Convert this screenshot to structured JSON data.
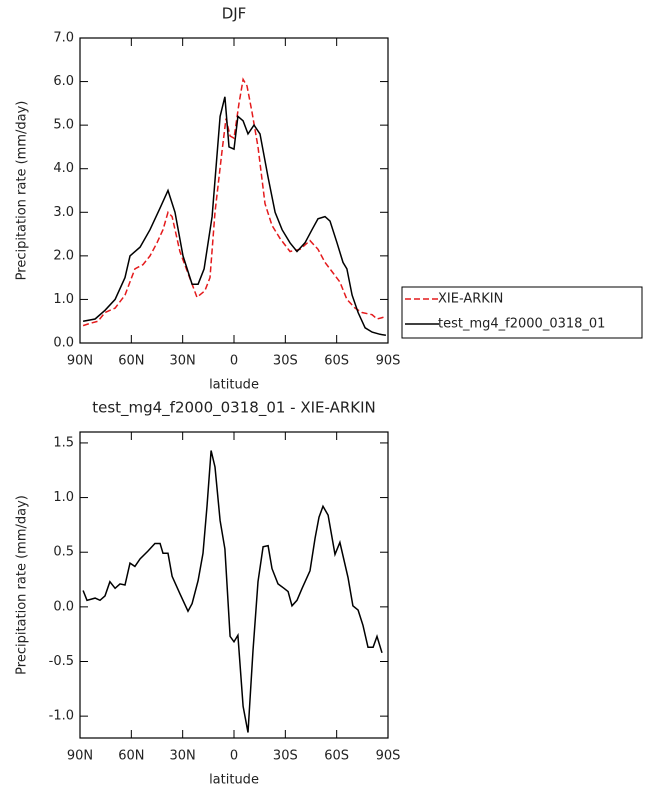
{
  "chart_data": [
    {
      "type": "line",
      "title": "DJF",
      "xlabel": "latitude",
      "ylabel": "Precipitation rate (mm/day)",
      "xlim": [
        90,
        -90
      ],
      "xticks": [
        {
          "value": 90,
          "label": "90N"
        },
        {
          "value": 60,
          "label": "60N"
        },
        {
          "value": 30,
          "label": "30N"
        },
        0,
        {
          "value": -30,
          "label": "30S"
        },
        {
          "value": -60,
          "label": "60S"
        },
        {
          "value": -90,
          "label": "90S"
        }
      ],
      "ylim": [
        0,
        7
      ],
      "yticks": [
        {
          "value": 0,
          "label": "0.0"
        },
        {
          "value": 1,
          "label": "1.0"
        },
        {
          "value": 2,
          "label": "2.0"
        },
        {
          "value": 3,
          "label": "3.0"
        },
        {
          "value": 4,
          "label": "4.0"
        },
        {
          "value": 5,
          "label": "5.0"
        },
        {
          "value": 6,
          "label": "6.0"
        },
        {
          "value": 7,
          "label": "7.0"
        }
      ],
      "legend": "right",
      "series": [
        {
          "name": "XIE-ARKIN",
          "color": "#e41a1c",
          "dash": true,
          "x": [
            88.2,
            84.2,
            79.5,
            75.4,
            69.5,
            63.7,
            57.9,
            53.2,
            49.1,
            45.0,
            41.5,
            38.6,
            36.2,
            31.6,
            26.9,
            21.6,
            17.0,
            14.0,
            11.1,
            7.0,
            4.7,
            2.3,
            0.0,
            -2.9,
            -5.3,
            -7.6,
            -10.5,
            -14.0,
            -18.1,
            -22.2,
            -26.9,
            -32.7,
            -38.6,
            -44.4,
            -49.1,
            -53.2,
            -59.0,
            -61.9,
            -66.0,
            -70.7,
            -74.8,
            -80.7,
            -83.6,
            -88.2
          ],
          "values": [
            0.4,
            0.45,
            0.5,
            0.7,
            0.8,
            1.1,
            1.7,
            1.8,
            2.0,
            2.3,
            2.6,
            3.0,
            2.9,
            2.1,
            1.6,
            1.05,
            1.2,
            1.5,
            3.0,
            4.4,
            5.15,
            4.75,
            4.7,
            5.5,
            6.05,
            5.9,
            5.3,
            4.5,
            3.2,
            2.7,
            2.4,
            2.1,
            2.15,
            2.35,
            2.15,
            1.85,
            1.55,
            1.4,
            1.0,
            0.8,
            0.7,
            0.65,
            0.55,
            0.6
          ]
        },
        {
          "name": "test_mg4_f2000_0318_01",
          "color": "#000000",
          "dash": false,
          "x": [
            88.2,
            81.2,
            75.4,
            69.5,
            63.7,
            60.8,
            54.9,
            49.1,
            43.2,
            38.6,
            34.5,
            29.8,
            24.5,
            21.0,
            17.5,
            12.8,
            8.1,
            5.3,
            2.9,
            0.0,
            -2.3,
            -5.3,
            -8.2,
            -11.7,
            -15.2,
            -19.9,
            -24.0,
            -28.1,
            -32.7,
            -36.8,
            -41.5,
            -45.6,
            -49.1,
            -53.2,
            -56.1,
            -60.2,
            -63.7,
            -66.0,
            -69.0,
            -72.5,
            -76.6,
            -80.7,
            -85.3,
            -88.8
          ],
          "values": [
            0.5,
            0.55,
            0.75,
            1.0,
            1.5,
            2.0,
            2.2,
            2.6,
            3.1,
            3.5,
            3.0,
            2.0,
            1.35,
            1.35,
            1.7,
            2.9,
            5.2,
            5.65,
            4.5,
            4.45,
            5.2,
            5.1,
            4.8,
            5.0,
            4.8,
            3.8,
            3.0,
            2.6,
            2.3,
            2.1,
            2.3,
            2.6,
            2.85,
            2.9,
            2.8,
            2.3,
            1.85,
            1.7,
            1.1,
            0.7,
            0.35,
            0.25,
            0.2,
            0.18
          ]
        }
      ]
    },
    {
      "type": "line",
      "title": "test_mg4_f2000_0318_01 - XIE-ARKIN",
      "xlabel": "latitude",
      "ylabel": "Precipitation rate (mm/day)",
      "xlim": [
        90,
        -90
      ],
      "xticks": [
        {
          "value": 90,
          "label": "90N"
        },
        {
          "value": 60,
          "label": "60N"
        },
        {
          "value": 30,
          "label": "30N"
        },
        0,
        {
          "value": -30,
          "label": "30S"
        },
        {
          "value": -60,
          "label": "60S"
        },
        {
          "value": -90,
          "label": "90S"
        }
      ],
      "ylim": [
        -1.2,
        1.6
      ],
      "yticks": [
        {
          "value": -1,
          "label": "-1.0"
        },
        -0.5,
        {
          "value": 0,
          "label": "0.0"
        },
        0.5,
        {
          "value": 1,
          "label": "1.0"
        },
        1.5
      ],
      "series": [
        {
          "color": "#000000",
          "dash": false,
          "x": [
            88.2,
            85.9,
            81.2,
            78.3,
            75.4,
            72.5,
            69.5,
            66.6,
            63.7,
            60.8,
            57.9,
            54.9,
            50.3,
            46.2,
            43.2,
            41.5,
            38.6,
            36.2,
            31.6,
            26.9,
            24.5,
            21.0,
            18.1,
            15.8,
            13.4,
            11.1,
            8.1,
            5.3,
            2.3,
            0.0,
            -2.3,
            -5.3,
            -8.2,
            -11.1,
            -14.0,
            -17.0,
            -19.9,
            -22.2,
            -25.7,
            -29.2,
            -31.6,
            -33.9,
            -36.8,
            -39.8,
            -44.4,
            -47.4,
            -49.7,
            -52.0,
            -55.0,
            -59.0,
            -61.9,
            -66.6,
            -69.5,
            -72.5,
            -75.4,
            -78.3,
            -81.3,
            -83.6,
            -86.5
          ],
          "values": [
            0.15,
            0.06,
            0.08,
            0.06,
            0.1,
            0.23,
            0.17,
            0.21,
            0.2,
            0.4,
            0.37,
            0.44,
            0.51,
            0.58,
            0.58,
            0.49,
            0.49,
            0.28,
            0.12,
            -0.04,
            0.03,
            0.24,
            0.49,
            0.92,
            1.43,
            1.28,
            0.79,
            0.53,
            -0.27,
            -0.32,
            -0.26,
            -0.91,
            -1.15,
            -0.4,
            0.23,
            0.55,
            0.56,
            0.35,
            0.21,
            0.17,
            0.14,
            0.01,
            0.06,
            0.17,
            0.33,
            0.63,
            0.82,
            0.92,
            0.84,
            0.48,
            0.59,
            0.27,
            0.01,
            -0.03,
            -0.17,
            -0.37,
            -0.37,
            -0.27,
            -0.42
          ]
        }
      ]
    }
  ]
}
